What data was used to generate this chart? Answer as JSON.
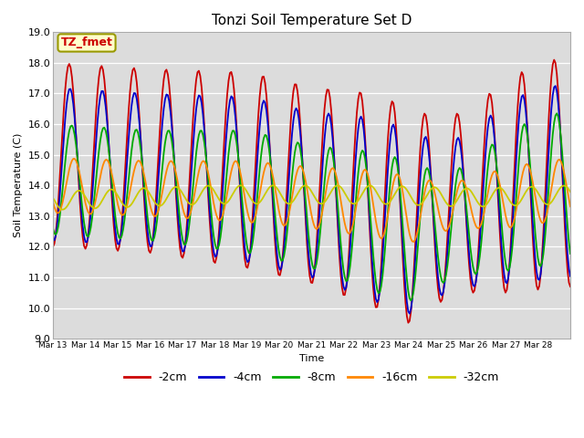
{
  "title": "Tonzi Soil Temperature Set D",
  "xlabel": "Time",
  "ylabel": "Soil Temperature (C)",
  "ylim": [
    9.0,
    19.0
  ],
  "yticks": [
    9.0,
    10.0,
    11.0,
    12.0,
    13.0,
    14.0,
    15.0,
    16.0,
    17.0,
    18.0,
    19.0
  ],
  "date_labels": [
    "Mar 13",
    "Mar 14",
    "Mar 15",
    "Mar 16",
    "Mar 17",
    "Mar 18",
    "Mar 19",
    "Mar 20",
    "Mar 21",
    "Mar 22",
    "Mar 23",
    "Mar 24",
    "Mar 25",
    "Mar 26",
    "Mar 27",
    "Mar 28"
  ],
  "legend_entries": [
    "-2cm",
    "-4cm",
    "-8cm",
    "-16cm",
    "-32cm"
  ],
  "line_colors": [
    "#cc0000",
    "#0000cc",
    "#00aa00",
    "#ff8800",
    "#cccc00"
  ],
  "annotation_text": "TZ_fmet",
  "annotation_color": "#cc0000",
  "annotation_bg": "#ffffcc",
  "plot_bg_color": "#dcdcdc",
  "grid_color": "#ffffff",
  "title_fontsize": 11,
  "axis_fontsize": 8,
  "legend_fontsize": 9,
  "figsize": [
    6.4,
    4.8
  ],
  "dpi": 100
}
